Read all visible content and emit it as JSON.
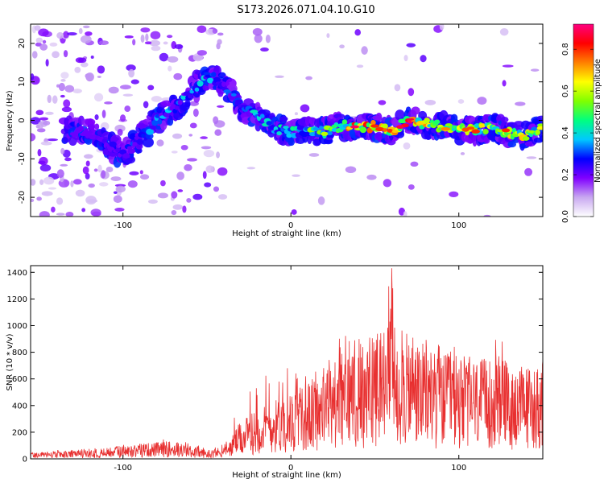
{
  "title": "S173.2026.071.04.10.G10",
  "chart_data": [
    {
      "type": "heatmap",
      "xlabel": "Height of straight line (km)",
      "ylabel": "Frequency (Hz)",
      "xlim": [
        -155,
        150
      ],
      "ylim": [
        -25,
        25
      ],
      "xticks": [
        -100,
        0,
        100
      ],
      "yticks": [
        -20,
        -10,
        0,
        10,
        20
      ],
      "colorbar": {
        "label": "Normalized spectral amplitude",
        "range": [
          0,
          0.92
        ],
        "ticks": [
          0.0,
          0.2,
          0.4,
          0.6,
          0.8
        ],
        "colormap": [
          "#ffffff",
          "#c8a8f0",
          "#8000ff",
          "#0000ff",
          "#00c8ff",
          "#00ff80",
          "#80ff00",
          "#ffff00",
          "#ff8000",
          "#ff0000",
          "#ff0080"
        ]
      },
      "ridge": {
        "x": [
          -120,
          -110,
          -100,
          -90,
          -80,
          -70,
          -60,
          -50,
          -40,
          -30,
          -20,
          -10,
          0,
          10,
          20,
          30,
          40,
          50,
          60,
          70,
          80,
          90,
          100,
          110,
          120,
          130,
          140,
          150
        ],
        "freq": [
          -3,
          -6,
          -9,
          -5,
          0,
          3,
          7,
          12,
          9,
          4,
          1,
          -2,
          -3,
          -3,
          -3,
          -1.5,
          -1.5,
          -1.5,
          -3,
          0,
          -1,
          -1.5,
          -2.5,
          -2.5,
          -2,
          -3,
          -4,
          -2
        ],
        "amplitude": [
          0.15,
          0.2,
          0.25,
          0.3,
          0.3,
          0.3,
          0.35,
          0.35,
          0.3,
          0.3,
          0.35,
          0.35,
          0.4,
          0.45,
          0.5,
          0.55,
          0.7,
          0.65,
          0.6,
          0.75,
          0.6,
          0.55,
          0.55,
          0.6,
          0.55,
          0.6,
          0.55,
          0.5
        ]
      }
    },
    {
      "type": "line",
      "xlabel": "Height of straight line (km)",
      "ylabel": "SNR (10 * v/v)",
      "xlim": [
        -155,
        150
      ],
      "ylim": [
        0,
        1450
      ],
      "xticks": [
        -100,
        0,
        100
      ],
      "yticks": [
        0,
        200,
        400,
        600,
        800,
        1000,
        1200,
        1400
      ],
      "color": "#e83030",
      "envelope": {
        "x": [
          -155,
          -120,
          -90,
          -70,
          -50,
          -38,
          -32,
          -20,
          -10,
          0,
          10,
          20,
          30,
          40,
          50,
          55,
          60,
          70,
          80,
          90,
          100,
          110,
          120,
          125,
          130,
          140,
          150
        ],
        "mean": [
          30,
          40,
          70,
          80,
          40,
          60,
          150,
          230,
          270,
          300,
          350,
          420,
          480,
          520,
          560,
          600,
          650,
          560,
          520,
          480,
          480,
          460,
          450,
          470,
          430,
          430,
          450
        ],
        "peak": [
          50,
          80,
          120,
          160,
          80,
          150,
          500,
          560,
          700,
          800,
          700,
          900,
          950,
          920,
          1000,
          1100,
          1420,
          1000,
          920,
          860,
          850,
          800,
          900,
          920,
          700,
          640,
          600
        ]
      }
    }
  ]
}
